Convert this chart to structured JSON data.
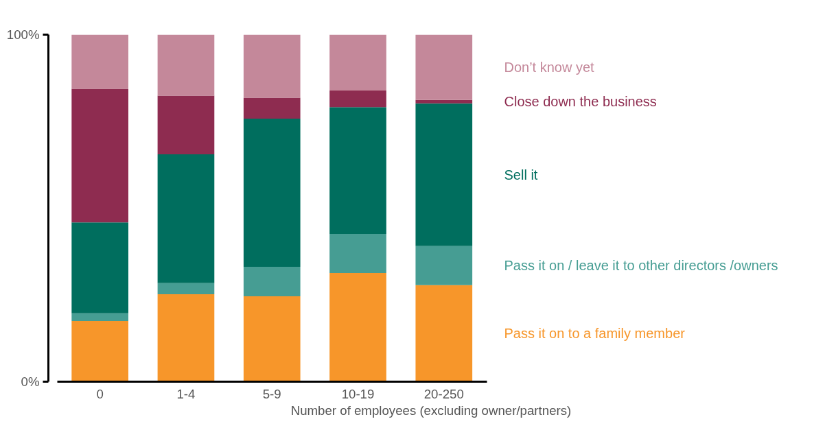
{
  "chart_data": {
    "type": "bar",
    "stacked": true,
    "xlabel": "Number of employees (excluding owner/partners)",
    "categories": [
      "0",
      "1-4",
      "5-9",
      "10-19",
      "20-250"
    ],
    "ylim": [
      0,
      100
    ],
    "yticks": [
      {
        "value": 0,
        "label": "0%"
      },
      {
        "value": 100,
        "label": "100%"
      }
    ],
    "grid": false,
    "legend": "right",
    "series": [
      {
        "name": "Pass it on to a family member",
        "color": "#f7962a",
        "values": [
          17.5,
          25.2,
          24.6,
          31.3,
          27.8
        ]
      },
      {
        "name": "Pass it on / leave it to other directors /owners",
        "color": "#469d93",
        "values": [
          2.2,
          3.2,
          8.5,
          11.3,
          11.3
        ]
      },
      {
        "name": "Sell it",
        "color": "#006e5e",
        "values": [
          26.2,
          37.1,
          42.7,
          36.5,
          41.1
        ]
      },
      {
        "name": "Close down the business",
        "color": "#8e2c50",
        "values": [
          38.5,
          16.9,
          6.0,
          4.8,
          1.0
        ]
      },
      {
        "name": "Don’t know yet",
        "color": "#c4889a",
        "values": [
          15.6,
          17.6,
          18.2,
          16.1,
          18.8
        ]
      }
    ]
  }
}
